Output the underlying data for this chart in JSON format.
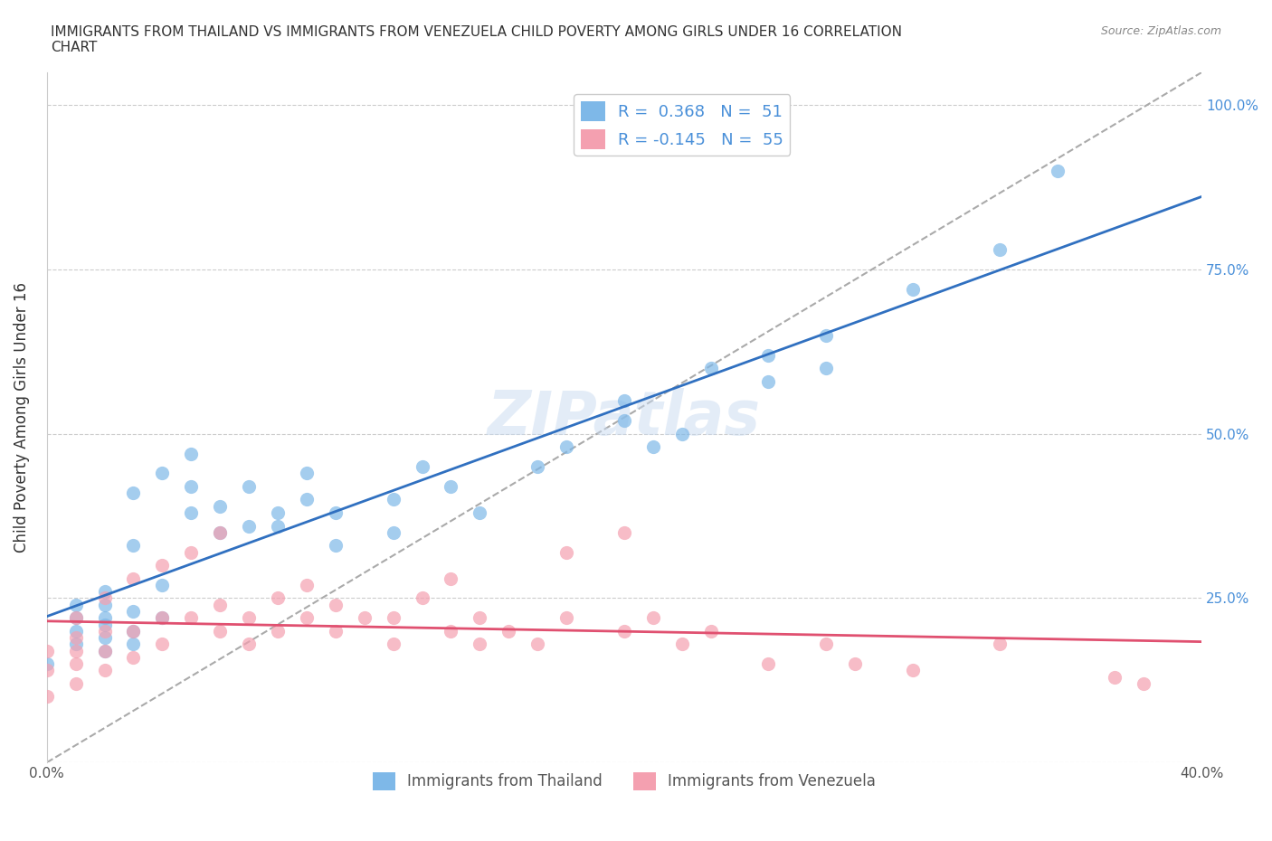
{
  "title": "IMMIGRANTS FROM THAILAND VS IMMIGRANTS FROM VENEZUELA CHILD POVERTY AMONG GIRLS UNDER 16 CORRELATION\nCHART",
  "source_text": "Source: ZipAtlas.com",
  "ylabel": "Child Poverty Among Girls Under 16",
  "xlabel": "",
  "xlim": [
    0.0,
    0.4
  ],
  "ylim": [
    0.0,
    1.05
  ],
  "xticks": [
    0.0,
    0.05,
    0.1,
    0.15,
    0.2,
    0.25,
    0.3,
    0.35,
    0.4
  ],
  "xticklabels": [
    "0.0%",
    "",
    "",
    "",
    "",
    "",
    "",
    "",
    "40.0%"
  ],
  "yticks": [
    0.0,
    0.25,
    0.5,
    0.75,
    1.0
  ],
  "yticklabels_right": [
    "",
    "25.0%",
    "50.0%",
    "75.0%",
    "100.0%"
  ],
  "R_thailand": 0.368,
  "N_thailand": 51,
  "R_venezuela": -0.145,
  "N_venezuela": 55,
  "color_thailand": "#7eb8e8",
  "color_venezuela": "#f4a0b0",
  "line_color_thailand": "#3070c0",
  "line_color_venezuela": "#e05070",
  "trendline_color_dashed": "#aaaaaa",
  "watermark": "ZIPatlas",
  "thailand_x": [
    0.0,
    0.01,
    0.01,
    0.01,
    0.01,
    0.02,
    0.02,
    0.02,
    0.02,
    0.02,
    0.02,
    0.03,
    0.03,
    0.03,
    0.03,
    0.03,
    0.04,
    0.04,
    0.04,
    0.05,
    0.05,
    0.05,
    0.06,
    0.06,
    0.07,
    0.07,
    0.08,
    0.08,
    0.09,
    0.09,
    0.1,
    0.1,
    0.12,
    0.12,
    0.13,
    0.14,
    0.15,
    0.17,
    0.18,
    0.2,
    0.2,
    0.21,
    0.22,
    0.23,
    0.25,
    0.25,
    0.27,
    0.27,
    0.3,
    0.33,
    0.35
  ],
  "thailand_y": [
    0.15,
    0.18,
    0.2,
    0.22,
    0.24,
    0.17,
    0.19,
    0.21,
    0.22,
    0.24,
    0.26,
    0.18,
    0.2,
    0.23,
    0.33,
    0.41,
    0.22,
    0.27,
    0.44,
    0.38,
    0.42,
    0.47,
    0.35,
    0.39,
    0.36,
    0.42,
    0.36,
    0.38,
    0.4,
    0.44,
    0.33,
    0.38,
    0.35,
    0.4,
    0.45,
    0.42,
    0.38,
    0.45,
    0.48,
    0.52,
    0.55,
    0.48,
    0.5,
    0.6,
    0.58,
    0.62,
    0.6,
    0.65,
    0.72,
    0.78,
    0.9
  ],
  "venezuela_x": [
    0.0,
    0.0,
    0.0,
    0.01,
    0.01,
    0.01,
    0.01,
    0.01,
    0.02,
    0.02,
    0.02,
    0.02,
    0.03,
    0.03,
    0.03,
    0.04,
    0.04,
    0.04,
    0.05,
    0.05,
    0.06,
    0.06,
    0.06,
    0.07,
    0.07,
    0.08,
    0.08,
    0.09,
    0.09,
    0.1,
    0.1,
    0.11,
    0.12,
    0.12,
    0.13,
    0.14,
    0.14,
    0.15,
    0.15,
    0.16,
    0.17,
    0.18,
    0.18,
    0.2,
    0.2,
    0.21,
    0.22,
    0.23,
    0.25,
    0.27,
    0.28,
    0.3,
    0.33,
    0.37,
    0.38
  ],
  "venezuela_y": [
    0.1,
    0.14,
    0.17,
    0.12,
    0.15,
    0.17,
    0.19,
    0.22,
    0.14,
    0.17,
    0.2,
    0.25,
    0.16,
    0.2,
    0.28,
    0.18,
    0.22,
    0.3,
    0.22,
    0.32,
    0.2,
    0.24,
    0.35,
    0.18,
    0.22,
    0.2,
    0.25,
    0.22,
    0.27,
    0.2,
    0.24,
    0.22,
    0.18,
    0.22,
    0.25,
    0.2,
    0.28,
    0.18,
    0.22,
    0.2,
    0.18,
    0.22,
    0.32,
    0.2,
    0.35,
    0.22,
    0.18,
    0.2,
    0.15,
    0.18,
    0.15,
    0.14,
    0.18,
    0.13,
    0.12
  ]
}
